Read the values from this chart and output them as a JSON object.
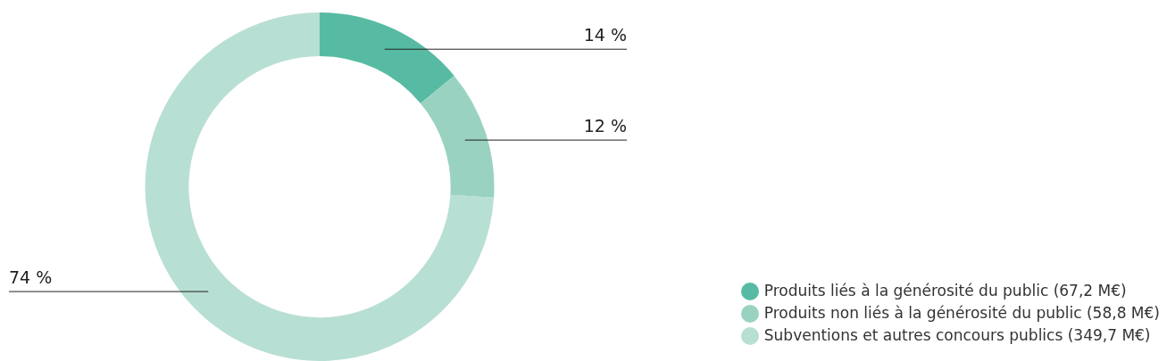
{
  "chart_data": {
    "type": "donut",
    "categories": [
      "Produits liés à la générosité du public (67,2 M€)",
      "Produits non liés à la générosité du public (58,8 M€)",
      "Subventions et autres concours publics (349,7 M€)"
    ],
    "values": [
      14,
      12,
      74
    ],
    "colors": [
      "#57bba3",
      "#99d2c1",
      "#b8dfd3"
    ],
    "value_labels": [
      "14 %",
      "12 %",
      "74 %"
    ],
    "legend": "bottom right"
  }
}
